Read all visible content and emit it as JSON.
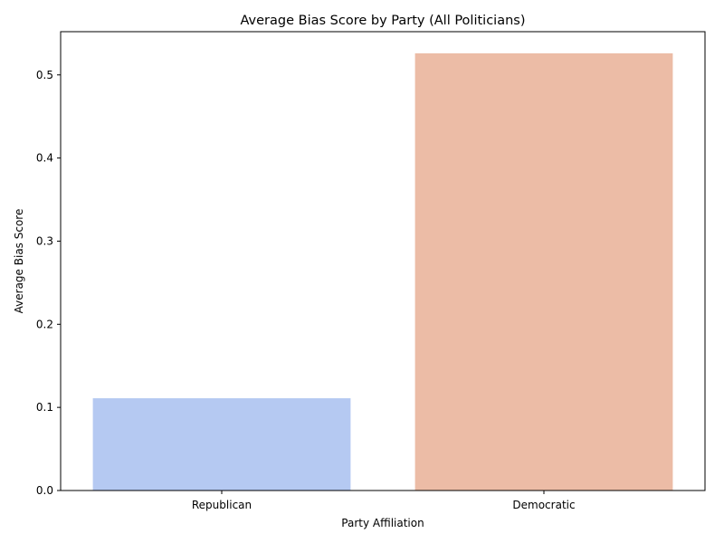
{
  "chart_data": {
    "type": "bar",
    "title": "Average Bias Score by Party (All Politicians)",
    "xlabel": "Party Affiliation",
    "ylabel": "Average Bias Score",
    "categories": [
      "Republican",
      "Democratic"
    ],
    "values": [
      0.111,
      0.526
    ],
    "colors": [
      "#b5c9f2",
      "#ecbca6"
    ],
    "ylim": [
      0,
      0.552
    ],
    "yticks": [
      0.0,
      0.1,
      0.2,
      0.3,
      0.4,
      0.5
    ],
    "ytick_labels": [
      "0.0",
      "0.1",
      "0.2",
      "0.3",
      "0.4",
      "0.5"
    ],
    "grid": false,
    "legend": "none"
  }
}
